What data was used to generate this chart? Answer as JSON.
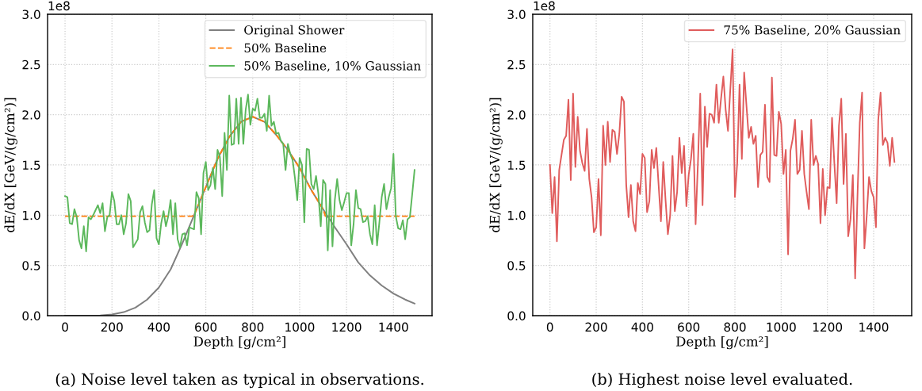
{
  "chart_data": [
    {
      "type": "line",
      "xlabel": "Depth [g/cm²]",
      "ylabel": "dE/dX [GeV/(g/cm²)]",
      "xlim": [
        -74.5,
        1564.5
      ],
      "ylim": [
        0,
        3.0
      ],
      "xticks": [
        0,
        200,
        400,
        600,
        800,
        1000,
        1200,
        1400
      ],
      "yticks": [
        {
          "value": 0,
          "label": "0.0"
        },
        {
          "value": 0.5,
          "label": "0.5"
        },
        {
          "value": 1.0,
          "label": "1.0"
        },
        {
          "value": 1.5,
          "label": "1.5"
        },
        {
          "value": 2.0,
          "label": "2.0"
        },
        {
          "value": 2.5,
          "label": "2.5"
        },
        {
          "value": 3.0,
          "label": "3.0"
        }
      ],
      "grid": true,
      "legend": "top right",
      "annotations": [
        "1e8",
        "(a) Noise level taken as typical in observations."
      ],
      "series": [
        {
          "name": "Original Shower",
          "color": "#7f7f7f",
          "line_style": "solid",
          "x": [
            0,
            50,
            100,
            150,
            200,
            250,
            300,
            350,
            400,
            450,
            500,
            550,
            600,
            650,
            700,
            750,
            800,
            850,
            900,
            950,
            1000,
            1050,
            1100,
            1150,
            1200,
            1250,
            1300,
            1350,
            1400,
            1450,
            1490
          ],
          "values": [
            0,
            0,
            0,
            0.003,
            0.012,
            0.035,
            0.08,
            0.16,
            0.28,
            0.46,
            0.72,
            1.0,
            1.28,
            1.56,
            1.78,
            1.93,
            1.98,
            1.93,
            1.8,
            1.65,
            1.47,
            1.25,
            1.06,
            0.88,
            0.71,
            0.53,
            0.4,
            0.3,
            0.22,
            0.16,
            0.12
          ]
        },
        {
          "name": "50% Baseline",
          "color": "#ff7f0e",
          "line_style": "dashed",
          "x": [
            0,
            540,
            550,
            600,
            650,
            700,
            750,
            800,
            850,
            900,
            950,
            1000,
            1050,
            1100,
            1110,
            1490
          ],
          "values": [
            0.99,
            0.99,
            1.0,
            1.28,
            1.56,
            1.78,
            1.93,
            1.98,
            1.93,
            1.8,
            1.65,
            1.47,
            1.25,
            1.06,
            0.99,
            0.99
          ]
        },
        {
          "name": "50% Baseline, 10% Gaussian",
          "color": "#5cb85c",
          "line_style": "solid",
          "x": [
            0,
            10,
            20,
            30,
            40,
            50,
            60,
            70,
            80,
            90,
            100,
            110,
            120,
            130,
            140,
            150,
            160,
            170,
            180,
            190,
            200,
            210,
            220,
            230,
            240,
            250,
            260,
            270,
            280,
            290,
            300,
            310,
            320,
            330,
            340,
            350,
            360,
            370,
            380,
            390,
            400,
            410,
            420,
            430,
            440,
            450,
            460,
            470,
            480,
            490,
            500,
            510,
            520,
            530,
            540,
            550,
            560,
            570,
            580,
            590,
            600,
            610,
            620,
            630,
            640,
            650,
            660,
            670,
            680,
            690,
            700,
            710,
            720,
            730,
            740,
            750,
            760,
            770,
            780,
            790,
            800,
            810,
            820,
            830,
            840,
            850,
            860,
            870,
            880,
            890,
            900,
            910,
            920,
            930,
            940,
            950,
            960,
            970,
            980,
            990,
            1000,
            1010,
            1020,
            1030,
            1040,
            1050,
            1060,
            1070,
            1080,
            1090,
            1100,
            1110,
            1120,
            1130,
            1140,
            1150,
            1160,
            1170,
            1180,
            1190,
            1200,
            1210,
            1220,
            1230,
            1240,
            1250,
            1260,
            1270,
            1280,
            1290,
            1300,
            1310,
            1320,
            1330,
            1340,
            1350,
            1360,
            1370,
            1380,
            1390,
            1400,
            1410,
            1420,
            1430,
            1440,
            1450,
            1460,
            1470,
            1480,
            1490
          ],
          "values": [
            1.19,
            1.18,
            0.92,
            0.91,
            1.06,
            0.98,
            0.75,
            0.67,
            0.89,
            0.64,
            0.98,
            0.96,
            1.0,
            1.05,
            1.1,
            1.02,
            1.12,
            0.84,
            0.98,
            1.0,
            1.23,
            1.14,
            0.91,
            0.91,
            1.0,
            0.81,
            0.92,
            1.21,
            1.14,
            0.68,
            0.72,
            0.76,
            1.03,
            1.09,
            0.93,
            0.83,
            0.85,
            1.11,
            1.25,
            0.77,
            0.71,
            0.92,
            1.04,
            0.89,
            0.99,
            1.15,
            0.81,
            1.12,
            0.76,
            0.68,
            0.81,
            0.82,
            0.7,
            0.88,
            0.87,
            0.86,
            1.23,
            1.17,
            0.81,
            1.42,
            1.53,
            1.25,
            1.3,
            1.47,
            1.26,
            1.65,
            1.58,
            1.19,
            1.82,
            1.45,
            2.19,
            1.7,
            1.71,
            2.16,
            1.71,
            2.17,
            1.71,
            2.05,
            2.2,
            1.9,
            2.06,
            2.04,
            2.16,
            1.97,
            1.97,
            2.01,
            1.84,
            2.19,
            1.89,
            1.93,
            1.81,
            1.82,
            1.74,
            1.71,
            1.45,
            1.71,
            1.61,
            1.55,
            1.37,
            1.15,
            1.57,
            1.5,
            0.93,
            1.66,
            1.65,
            1.31,
            1.26,
            1.39,
            1.21,
            0.89,
            1.35,
            1.31,
            0.65,
            1.25,
            0.69,
            1.15,
            1.36,
            1.15,
            1.05,
            1.13,
            1.22,
            1.22,
            0.7,
            0.91,
            1.25,
            1.07,
            1.06,
            0.93,
            0.94,
            0.99,
            0.81,
            0.71,
            1.1,
            0.7,
            0.93,
            1.18,
            1.31,
            1.06,
            1.18,
            1.27,
            1.61,
            0.99,
            0.87,
            0.86,
            0.95,
            0.76,
            0.96,
            0.98,
            1.21,
            1.45
          ]
        }
      ]
    },
    {
      "type": "line",
      "xlabel": "Depth [g/cm²]",
      "ylabel": "dE/dX [GeV/(g/cm²)]",
      "xlim": [
        -74.5,
        1564.5
      ],
      "ylim": [
        0,
        3.0
      ],
      "xticks": [
        0,
        200,
        400,
        600,
        800,
        1000,
        1200,
        1400
      ],
      "yticks": [
        {
          "value": 0,
          "label": "0.0"
        },
        {
          "value": 0.5,
          "label": "0.5"
        },
        {
          "value": 1.0,
          "label": "1.0"
        },
        {
          "value": 1.5,
          "label": "1.5"
        },
        {
          "value": 2.0,
          "label": "2.0"
        },
        {
          "value": 2.5,
          "label": "2.5"
        },
        {
          "value": 3.0,
          "label": "3.0"
        }
      ],
      "grid": true,
      "legend": "top right",
      "annotations": [
        "1e8",
        "(b) Highest noise level evaluated."
      ],
      "series": [
        {
          "name": "75% Baseline, 20% Gaussian",
          "color": "#e05c5c",
          "line_style": "solid",
          "x": [
            0,
            10,
            20,
            30,
            40,
            50,
            60,
            70,
            80,
            90,
            100,
            110,
            120,
            130,
            140,
            150,
            160,
            170,
            180,
            190,
            200,
            210,
            220,
            230,
            240,
            250,
            260,
            270,
            280,
            290,
            300,
            310,
            320,
            330,
            340,
            350,
            360,
            370,
            380,
            390,
            400,
            410,
            420,
            430,
            440,
            450,
            460,
            470,
            480,
            490,
            500,
            510,
            520,
            530,
            540,
            550,
            560,
            570,
            580,
            590,
            600,
            610,
            620,
            630,
            640,
            650,
            660,
            670,
            680,
            690,
            700,
            710,
            720,
            730,
            740,
            750,
            760,
            770,
            780,
            790,
            800,
            810,
            820,
            830,
            840,
            850,
            860,
            870,
            880,
            890,
            900,
            910,
            920,
            930,
            940,
            950,
            960,
            970,
            980,
            990,
            1000,
            1010,
            1020,
            1030,
            1040,
            1050,
            1060,
            1070,
            1080,
            1090,
            1100,
            1110,
            1120,
            1130,
            1140,
            1150,
            1160,
            1170,
            1180,
            1190,
            1200,
            1210,
            1220,
            1230,
            1240,
            1250,
            1260,
            1270,
            1280,
            1290,
            1300,
            1310,
            1320,
            1330,
            1340,
            1350,
            1360,
            1370,
            1380,
            1390,
            1400,
            1410,
            1420,
            1430,
            1440,
            1450,
            1460,
            1470,
            1480,
            1490
          ],
          "values": [
            1.5,
            1.02,
            1.38,
            0.74,
            1.45,
            1.6,
            1.75,
            1.79,
            2.15,
            1.35,
            2.21,
            1.48,
            1.98,
            1.64,
            1.52,
            1.44,
            1.86,
            1.36,
            1.18,
            0.83,
            0.88,
            1.36,
            0.8,
            1.89,
            1.5,
            1.93,
            1.53,
            1.85,
            1.83,
            1.61,
            1.81,
            2.18,
            2.13,
            1.3,
            0.98,
            1.3,
            0.94,
            0.84,
            1.32,
            1.21,
            1.61,
            1.57,
            1.03,
            1.14,
            1.65,
            1.47,
            1.67,
            1.3,
            0.94,
            1.53,
            1.15,
            0.81,
            1.0,
            1.59,
            1.04,
            1.23,
            1.77,
            1.42,
            1.69,
            1.09,
            1.4,
            1.56,
            1.81,
            0.91,
            1.52,
            2.21,
            1.1,
            2.08,
            1.68,
            2.01,
            2.0,
            1.92,
            2.3,
            1.92,
            2.16,
            2.38,
            2.05,
            1.84,
            2.25,
            2.65,
            1.18,
            1.52,
            2.3,
            1.56,
            2.42,
            2.09,
            1.77,
            1.88,
            1.71,
            1.79,
            1.28,
            1.6,
            1.63,
            2.1,
            1.38,
            1.33,
            2.37,
            1.6,
            1.59,
            2.03,
            1.91,
            1.41,
            1.65,
            0.61,
            1.64,
            1.76,
            1.95,
            1.41,
            1.45,
            1.84,
            1.41,
            1.23,
            1.06,
            1.95,
            1.5,
            1.59,
            1.51,
            0.92,
            1.46,
            1.0,
            1.28,
            1.27,
            1.97,
            1.52,
            1.12,
            1.89,
            2.16,
            1.31,
            1.81,
            0.79,
            0.96,
            1.4,
            0.37,
            1.18,
            1.92,
            2.22,
            0.67,
            0.99,
            1.38,
            1.24,
            1.18,
            0.88,
            1.95,
            2.22,
            1.7,
            1.77,
            1.72,
            1.49,
            1.77,
            1.53
          ]
        }
      ]
    }
  ]
}
